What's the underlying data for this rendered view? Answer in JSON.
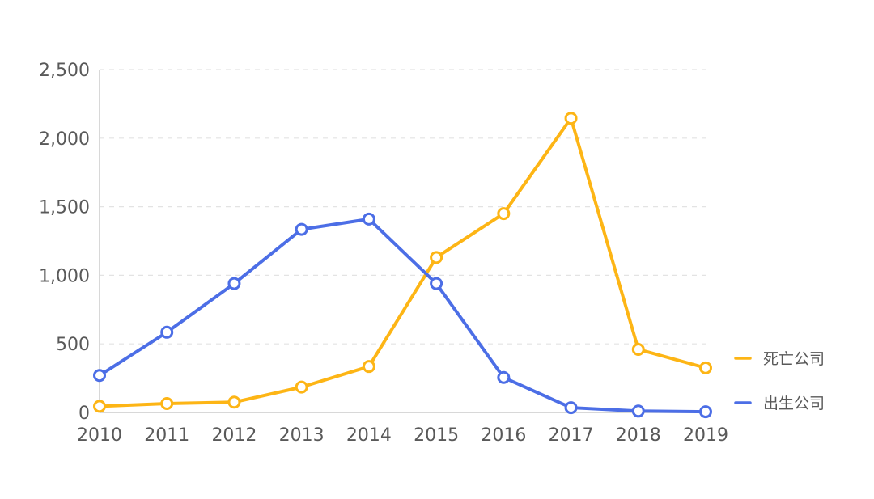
{
  "chart_data": {
    "type": "line",
    "categories": [
      "2010",
      "2011",
      "2012",
      "2013",
      "2014",
      "2015",
      "2016",
      "2017",
      "2018",
      "2019"
    ],
    "y_ticks": [
      "0",
      "500",
      "1,000",
      "1,500",
      "2,000",
      "2,500"
    ],
    "ylim": [
      0,
      2500
    ],
    "grid": true,
    "legend_position": "right",
    "series": [
      {
        "name": "死亡公司",
        "color": "#FDB515",
        "values": [
          45,
          65,
          75,
          185,
          335,
          1130,
          1450,
          2145,
          460,
          325
        ]
      },
      {
        "name": "出生公司",
        "color": "#4C6EE6",
        "values": [
          270,
          585,
          940,
          1335,
          1410,
          940,
          255,
          35,
          10,
          5
        ]
      }
    ]
  }
}
